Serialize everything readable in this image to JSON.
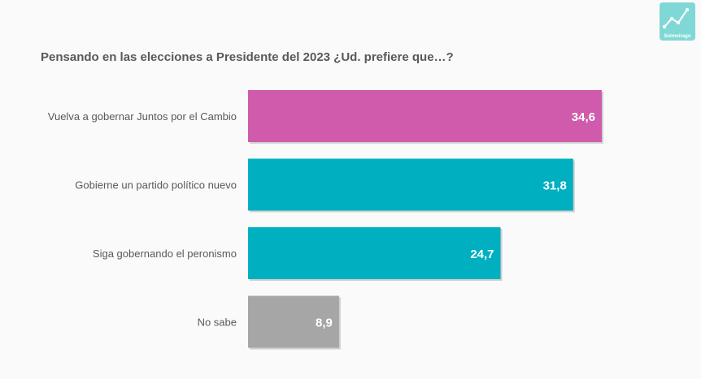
{
  "header": {
    "title": "Pensando en las elecciones a Presidente del 2023 ¿Ud. prefiere que…?",
    "logo_text": "Solmoirago"
  },
  "colors": {
    "magenta": "#d05aab",
    "teal": "#00b0c0",
    "gray": "#a6a6a6"
  },
  "chart_data": {
    "type": "bar",
    "orientation": "horizontal",
    "title": "Pensando en las elecciones a Presidente del 2023 ¿Ud. prefiere que…?",
    "categories": [
      "Vuelva a gobernar Juntos por el Cambio",
      "Gobierne un partido político nuevo",
      "Siga gobernando el peronismo",
      "No sabe"
    ],
    "values": [
      34.6,
      31.8,
      24.7,
      8.9
    ],
    "value_labels": [
      "34,6",
      "31,8",
      "24,7",
      "8,9"
    ],
    "bar_colors": [
      "#d05aab",
      "#00b0c0",
      "#00b0c0",
      "#a6a6a6"
    ],
    "xlim": [
      0,
      34.6
    ],
    "grid": false,
    "legend": "none"
  }
}
